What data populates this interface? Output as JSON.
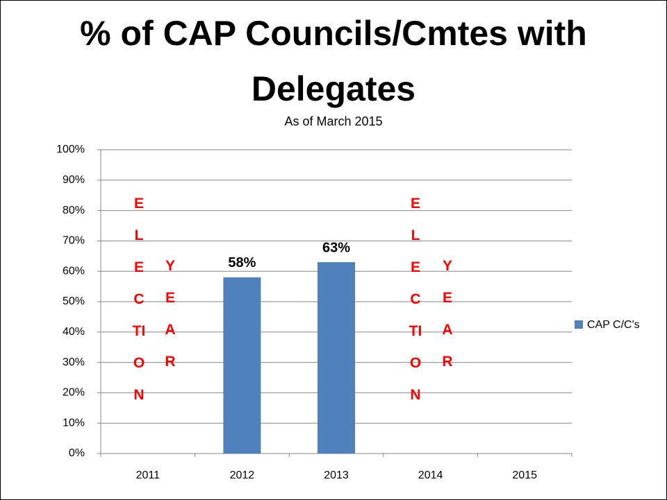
{
  "chart_data": {
    "type": "bar",
    "title": "% of CAP Councils/Cmtes with Delegates",
    "subtitle": "As of March 2015",
    "categories": [
      "2011",
      "2012",
      "2013",
      "2014",
      "2015"
    ],
    "series": [
      {
        "name": "CAP C/C's",
        "color": "#4f81bd",
        "values": [
          null,
          58,
          63,
          null,
          null
        ],
        "value_labels": [
          null,
          "58%",
          "63%",
          null,
          null
        ]
      }
    ],
    "annotations": [
      "ELECTION",
      "YEAR",
      "ELECTION",
      "YEAR"
    ],
    "ylim": [
      0,
      100
    ],
    "yticks": [
      {
        "value": 0,
        "label": "0%"
      },
      {
        "value": 10,
        "label": "10%"
      },
      {
        "value": 20,
        "label": "20%"
      },
      {
        "value": 30,
        "label": "30%"
      },
      {
        "value": 40,
        "label": "40%"
      },
      {
        "value": 50,
        "label": "50%"
      },
      {
        "value": 60,
        "label": "60%"
      },
      {
        "value": 70,
        "label": "70%"
      },
      {
        "value": 80,
        "label": "80%"
      },
      {
        "value": 90,
        "label": "90%"
      },
      {
        "value": 100,
        "label": "100%"
      }
    ],
    "grid": true,
    "legend": "right"
  }
}
